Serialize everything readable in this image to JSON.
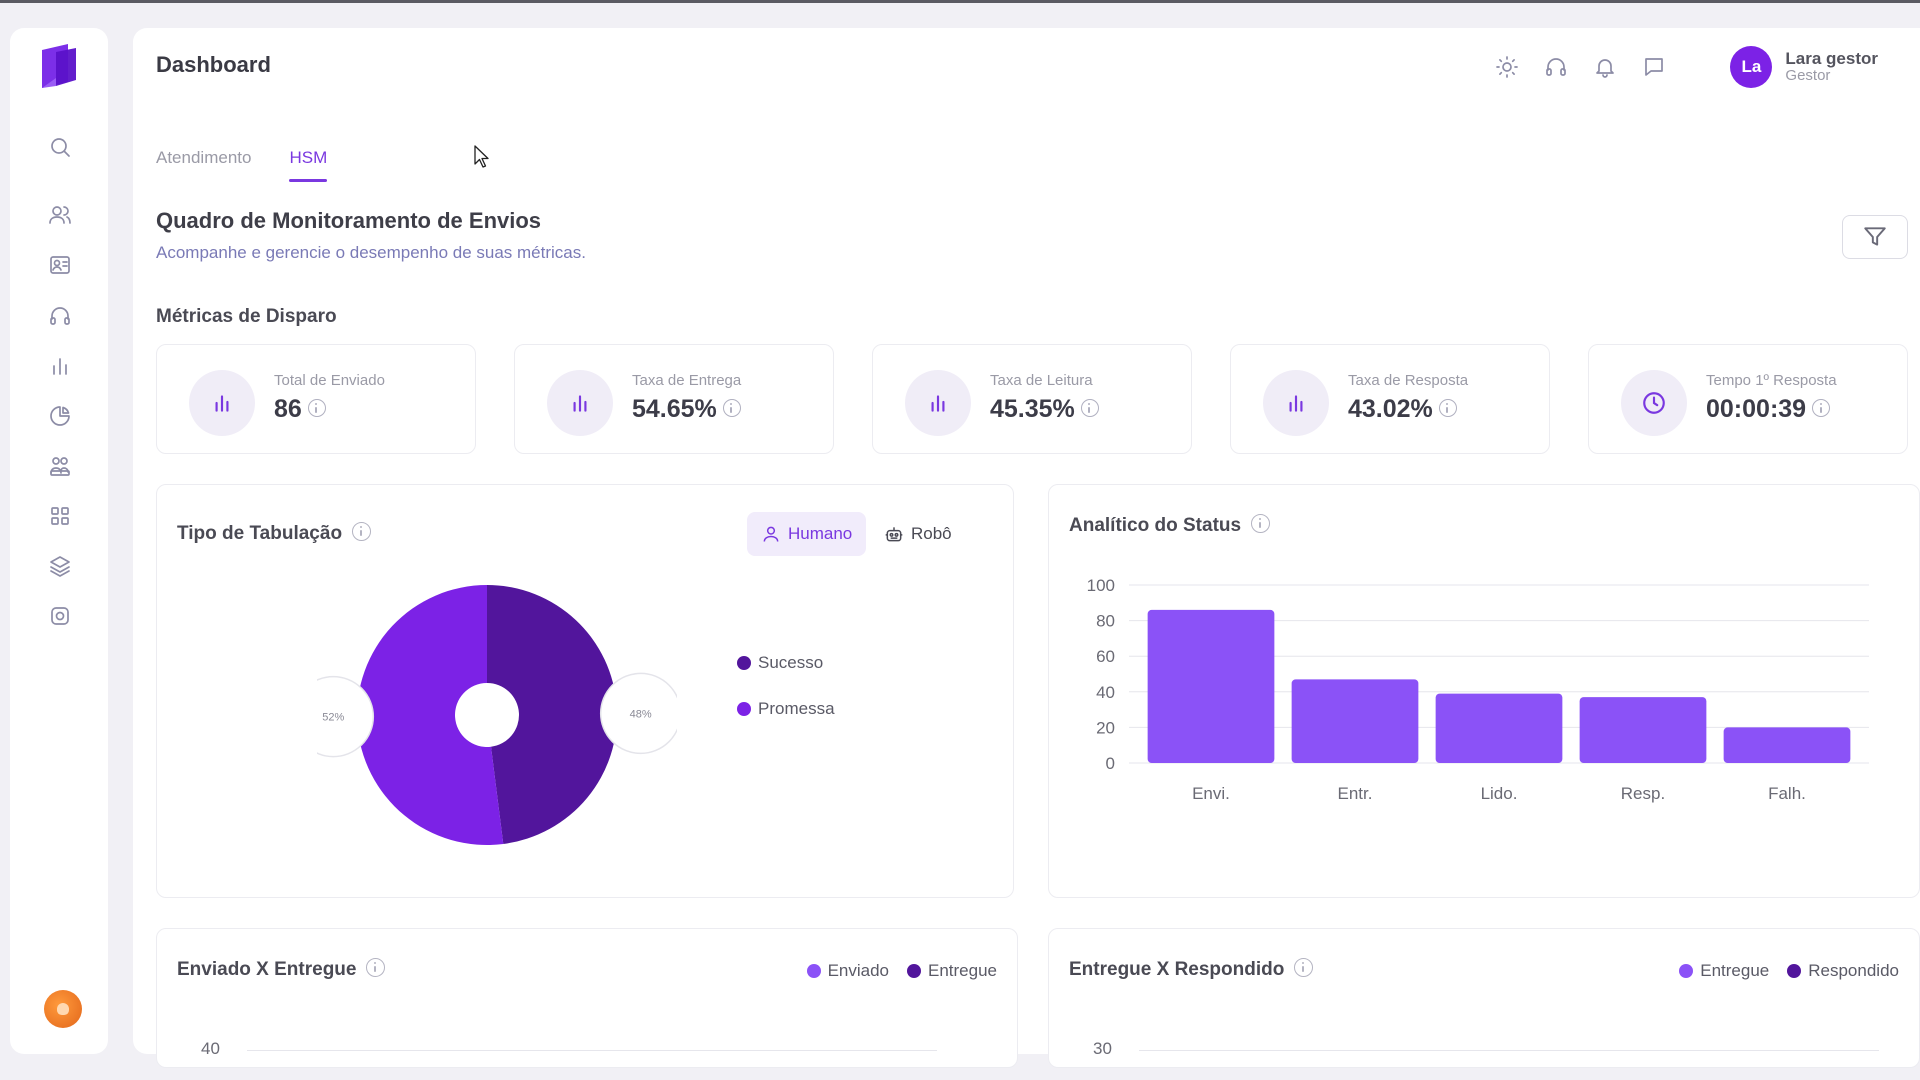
{
  "header": {
    "title": "Dashboard",
    "user": {
      "initials": "La",
      "name": "Lara gestor",
      "role": "Gestor"
    }
  },
  "tabs": [
    {
      "label": "Atendimento",
      "active": false
    },
    {
      "label": "HSM",
      "active": true
    }
  ],
  "section": {
    "title": "Quadro de Monitoramento de Envios",
    "subtitle": "Acompanhe e gerencie o desempenho de suas métricas."
  },
  "metrics": {
    "title": "Métricas de Disparo",
    "items": [
      {
        "label": "Total de Enviado",
        "value": "86",
        "icon": "bar-chart-icon"
      },
      {
        "label": "Taxa de Entrega",
        "value": "54.65%",
        "icon": "bar-chart-icon"
      },
      {
        "label": "Taxa de Leitura",
        "value": "45.35%",
        "icon": "bar-chart-icon"
      },
      {
        "label": "Taxa de Resposta",
        "value": "43.02%",
        "icon": "bar-chart-icon"
      },
      {
        "label": "Tempo 1º Resposta",
        "value": "00:00:39",
        "icon": "clock-icon"
      }
    ]
  },
  "tabulacao": {
    "title": "Tipo de Tabulação",
    "toggle": {
      "humano": "Humano",
      "robo": "Robô",
      "selected": "humano"
    }
  },
  "status": {
    "title": "Analítico do Status"
  },
  "enviado_entregue": {
    "title": "Enviado X Entregue",
    "legend": [
      "Enviado",
      "Entregue"
    ],
    "y_top": "40"
  },
  "entregue_respondido": {
    "title": "Entregue X Respondido",
    "legend": [
      "Entregue",
      "Respondido"
    ],
    "y_top": "30"
  },
  "colors": {
    "primary": "#7a38e0",
    "donut_light": "#7c22e6",
    "donut_dark": "#52159c",
    "bar": "#8b52f7",
    "legend_light": "#8b52f7",
    "legend_dark": "#52159c"
  },
  "chart_data": [
    {
      "type": "pie",
      "categories": [
        "Sucesso",
        "Promessa"
      ],
      "values": [
        48,
        52
      ],
      "value_labels": [
        "48%",
        "52%"
      ]
    },
    {
      "type": "bar",
      "categories": [
        "Envi.",
        "Entr.",
        "Lido.",
        "Resp.",
        "Falh."
      ],
      "values": [
        86,
        47,
        39,
        37,
        20
      ],
      "ylim": [
        0,
        100
      ],
      "yticks": [
        "100",
        "80",
        "60",
        "40",
        "20",
        "0"
      ],
      "grid": true
    }
  ]
}
